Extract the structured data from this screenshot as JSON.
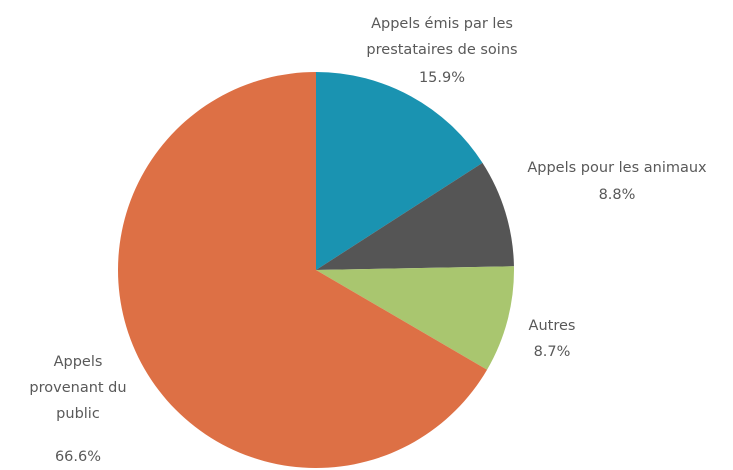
{
  "chart_data": {
    "type": "pie",
    "categories": [
      "Appels émis par les prestataires de soins",
      "Appels pour les animaux",
      "Autres",
      "Appels provenant du public"
    ],
    "values": [
      15.9,
      8.8,
      8.7,
      66.6
    ],
    "value_labels": [
      "15.9%",
      "8.8%",
      "8.7%",
      "66.6%"
    ],
    "colors": [
      "#1a93b1",
      "#555555",
      "#a9c66f",
      "#dd7045"
    ]
  }
}
